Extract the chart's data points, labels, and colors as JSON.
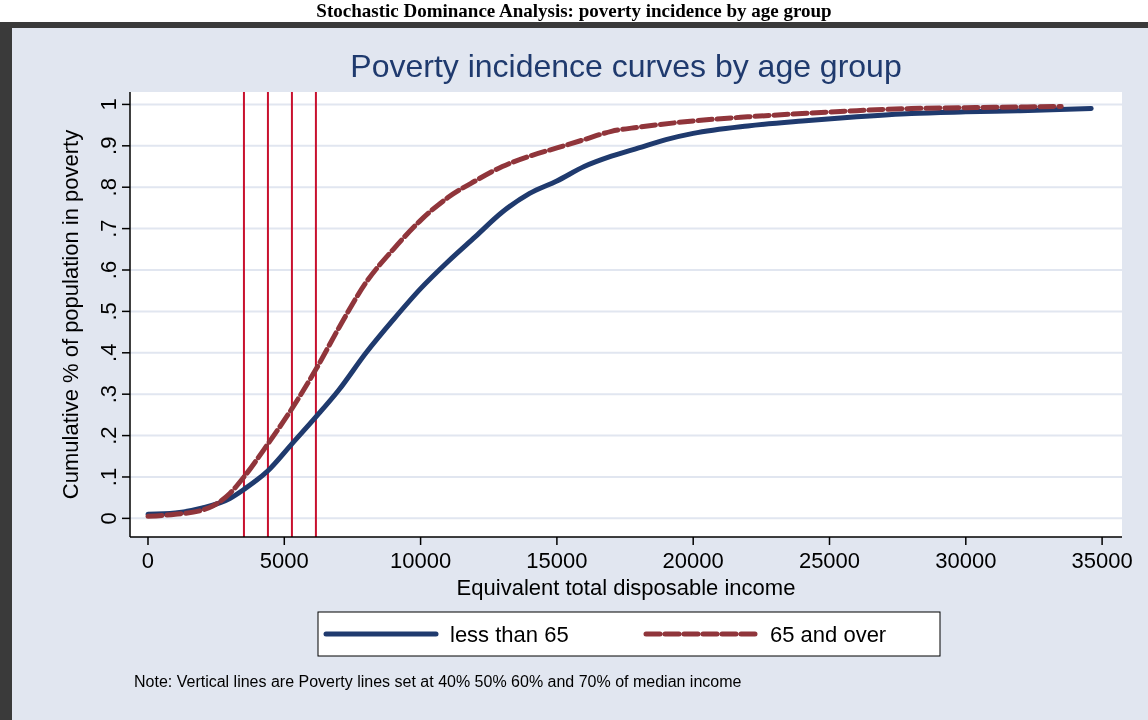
{
  "chart_data": {
    "type": "line",
    "title": "Stochastic Dominance Analysis: poverty incidence by age group",
    "subtitle": "Poverty incidence curves by age group",
    "xlabel": "Equivalent total disposable income",
    "ylabel": "Cumulative % of population in poverty",
    "x": [
      0,
      1000,
      2000,
      3000,
      3520,
      4400,
      5280,
      6160,
      7000,
      8000,
      9000,
      10000,
      11000,
      12000,
      13000,
      14000,
      15000,
      16000,
      17000,
      18000,
      19000,
      20000,
      22000,
      24000,
      26000,
      28000,
      30000,
      32000,
      34600
    ],
    "series": [
      {
        "name": "less than 65",
        "color": "#1f3a6e",
        "line_style": "solid",
        "values": [
          0.01,
          0.013,
          0.025,
          0.048,
          0.07,
          0.115,
          0.18,
          0.245,
          0.31,
          0.4,
          0.48,
          0.555,
          0.62,
          0.68,
          0.74,
          0.785,
          0.815,
          0.85,
          0.875,
          0.895,
          0.915,
          0.93,
          0.948,
          0.96,
          0.97,
          0.978,
          0.982,
          0.985,
          0.99
        ]
      },
      {
        "name": "65 and over",
        "color": "#90353b",
        "line_style": "dashed",
        "x": [
          0,
          1000,
          2000,
          3000,
          3520,
          4400,
          5280,
          6160,
          7000,
          8000,
          9000,
          10000,
          11000,
          12000,
          13000,
          14000,
          15000,
          16000,
          17000,
          18000,
          20000,
          22000,
          24000,
          26000,
          28000,
          30000,
          33500
        ],
        "values": [
          0.005,
          0.01,
          0.02,
          0.06,
          0.1,
          0.18,
          0.265,
          0.36,
          0.46,
          0.57,
          0.65,
          0.72,
          0.775,
          0.815,
          0.85,
          0.875,
          0.895,
          0.915,
          0.935,
          0.945,
          0.96,
          0.97,
          0.978,
          0.985,
          0.99,
          0.992,
          0.995
        ]
      }
    ],
    "ref_lines": [
      {
        "axis": "x",
        "value": 3520,
        "color": "#c8102e"
      },
      {
        "axis": "x",
        "value": 4400,
        "color": "#c8102e"
      },
      {
        "axis": "x",
        "value": 5280,
        "color": "#c8102e"
      },
      {
        "axis": "x",
        "value": 6160,
        "color": "#c8102e"
      }
    ],
    "xlim": [
      -660,
      35730
    ],
    "xticks": [
      0,
      5000,
      10000,
      15000,
      20000,
      25000,
      30000,
      35000
    ],
    "ylim": [
      -0.045,
      1.03
    ],
    "yticks": [
      {
        "value": 0,
        "label": "0"
      },
      {
        "value": 0.1,
        "label": ".1"
      },
      {
        "value": 0.2,
        "label": ".2"
      },
      {
        "value": 0.3,
        "label": ".3"
      },
      {
        "value": 0.4,
        "label": ".4"
      },
      {
        "value": 0.5,
        "label": ".5"
      },
      {
        "value": 0.6,
        "label": ".6"
      },
      {
        "value": 0.7,
        "label": ".7"
      },
      {
        "value": 0.8,
        "label": ".8"
      },
      {
        "value": 0.9,
        "label": ".9"
      },
      {
        "value": 1,
        "label": "1"
      }
    ],
    "grid": "y",
    "legend": "bottom",
    "marker": "none",
    "annotations": [
      "Note: Vertical lines are Poverty lines set at 40% 50% 60% and 70% of median income"
    ]
  }
}
